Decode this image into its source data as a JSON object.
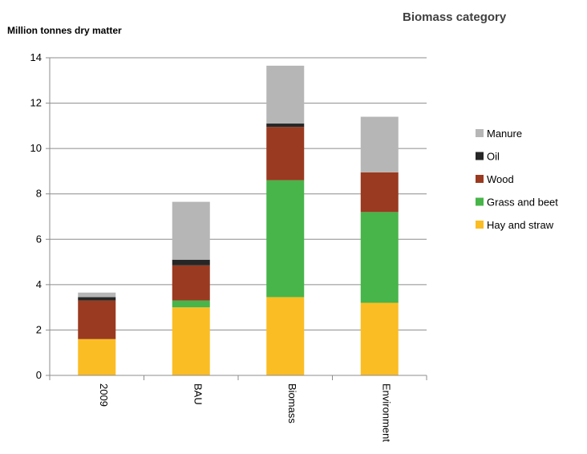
{
  "chart_data": {
    "type": "bar",
    "stacked": true,
    "title": "",
    "ylabel": "Million tonnes dry matter",
    "xlabel": "",
    "legend_title": "Biomass category",
    "legend_position": "right",
    "ylim": [
      0,
      14
    ],
    "yticks": [
      0,
      2,
      4,
      6,
      8,
      10,
      12,
      14
    ],
    "grid": true,
    "categories": [
      "2009",
      "BAU",
      "Biomass",
      "Environment"
    ],
    "series": [
      {
        "name": "Hay and straw",
        "color": "#fbbd24",
        "values": [
          1.6,
          3.0,
          3.45,
          3.2
        ]
      },
      {
        "name": "Grass and beet",
        "color": "#47b549",
        "values": [
          0.0,
          0.3,
          5.15,
          4.0
        ]
      },
      {
        "name": "Wood",
        "color": "#9a3a20",
        "values": [
          1.7,
          1.55,
          2.35,
          1.75
        ]
      },
      {
        "name": "Oil",
        "color": "#262626",
        "values": [
          0.15,
          0.25,
          0.15,
          0.0
        ]
      },
      {
        "name": "Manure",
        "color": "#b6b6b6",
        "values": [
          0.2,
          2.55,
          2.55,
          2.45
        ]
      }
    ],
    "legend_order": [
      "Manure",
      "Oil",
      "Wood",
      "Grass and beet",
      "Hay and straw"
    ]
  }
}
